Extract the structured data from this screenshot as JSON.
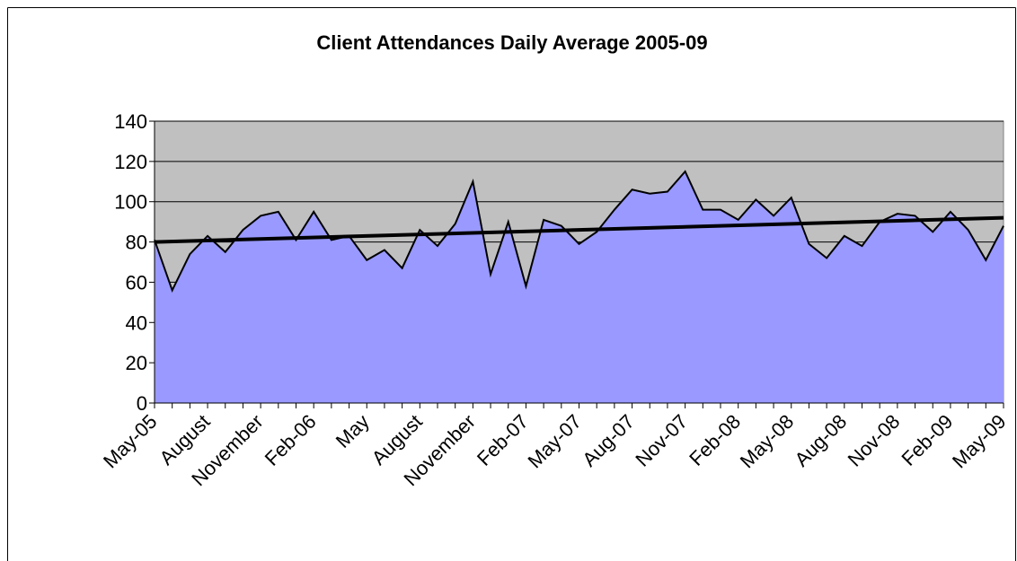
{
  "chart_data": {
    "type": "area",
    "title": "Client Attendances Daily Average 2005-09",
    "categories": [
      "May-05",
      null,
      null,
      "August",
      null,
      null,
      "November",
      null,
      null,
      "Feb-06",
      null,
      null,
      "May",
      null,
      null,
      "August",
      null,
      null,
      "November",
      null,
      null,
      "Feb-07",
      null,
      null,
      "May-07",
      null,
      null,
      "Aug-07",
      null,
      null,
      "Nov-07",
      null,
      null,
      "Feb-08",
      null,
      null,
      "May-08",
      null,
      null,
      "Aug-08",
      null,
      null,
      "Nov-08",
      null,
      null,
      "Feb-09",
      null,
      null,
      "May-09"
    ],
    "values": [
      81,
      56,
      74,
      83,
      75,
      86,
      93,
      95,
      81,
      95,
      81,
      83,
      71,
      76,
      67,
      86,
      78,
      89,
      110,
      64,
      90,
      58,
      91,
      88,
      79,
      85,
      96,
      106,
      104,
      105,
      115,
      96,
      96,
      91,
      101,
      93,
      102,
      79,
      72,
      83,
      78,
      90,
      94,
      93,
      85,
      95,
      86,
      71,
      88
    ],
    "color": "#9999ff",
    "trendline": [
      80,
      92
    ],
    "ylim": [
      0,
      140
    ],
    "yticks": [
      0,
      20,
      40,
      60,
      80,
      100,
      120,
      140
    ],
    "grid": true
  }
}
